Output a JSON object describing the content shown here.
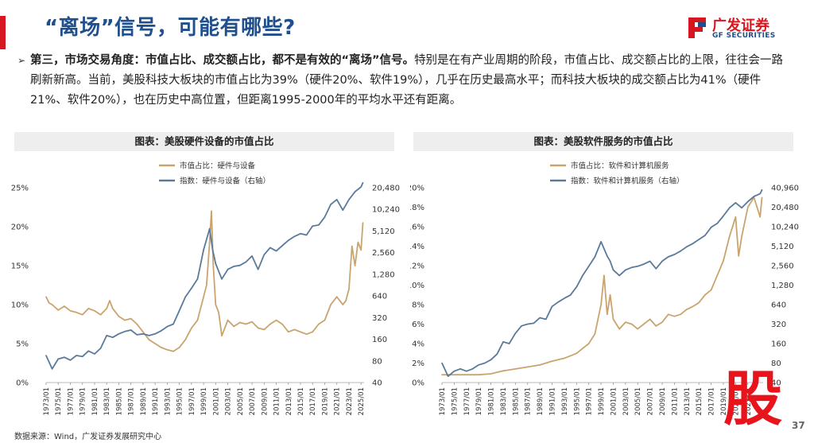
{
  "header": {
    "title": "“离场”信号，可能有哪些?",
    "logo_cn": "广发证券",
    "logo_en": "GF SECURITIES"
  },
  "paragraph": {
    "lead": "第三，市场交易角度：市值占比、成交额占比，都不是有效的“离场”信号。",
    "body": "特别是在有产业周期的阶段，市值占比、成交额占比的上限，往往会一路刷新新高。当前，美股科技大板块的市值占比为39%（硬件20%、软件19%），几乎在历史最高水平；而科技大板块的成交额占比为41%（硬件21%、软件20%），也在历史中高位置，但距离1995-2000年的平均水平还有距离。"
  },
  "footer": {
    "source": "数据来源：Wind，广发证券发展研究中心",
    "page": "37",
    "watermark": "股"
  },
  "colors": {
    "share": "#c9a46e",
    "index": "#5a7a9a",
    "title": "#1f4f8c",
    "brand_red": "#d6171f"
  },
  "chart_data": [
    {
      "type": "line",
      "title": "图表：美股硬件设备的市值占比",
      "legend": [
        "市值占比：硬件与设备",
        "指数：硬件与设备（右轴）"
      ],
      "y_left_ticks": [
        "25%",
        "20%",
        "15%",
        "10%",
        "5%",
        "0%"
      ],
      "y_left_range": [
        0,
        25
      ],
      "y_right_ticks": [
        "20,480",
        "10,240",
        "5,120",
        "2,560",
        "1,280",
        "640",
        "320",
        "160",
        "80",
        "40"
      ],
      "y_right_range_log2": [
        40,
        20480
      ],
      "x_ticks": [
        "1973/01",
        "1975/01",
        "1977/01",
        "1979/01",
        "1981/01",
        "1983/01",
        "1985/01",
        "1987/01",
        "1989/01",
        "1991/01",
        "1993/01",
        "1995/01",
        "1997/01",
        "1999/01",
        "2001/01",
        "2003/01",
        "2005/01",
        "2007/01",
        "2009/01",
        "2011/01",
        "2013/01",
        "2015/01",
        "2017/01",
        "2019/01",
        "2021/01",
        "2023/01",
        "2025/01"
      ],
      "x_range": [
        1973,
        2025.5
      ],
      "series": [
        {
          "name": "市值占比：硬件与设备",
          "axis": "left",
          "x": [
            1973,
            1973.5,
            1974,
            1975,
            1976,
            1977,
            1978,
            1979,
            1980,
            1981,
            1982,
            1983,
            1983.5,
            1984,
            1985,
            1986,
            1987,
            1988,
            1989,
            1990,
            1991,
            1992,
            1993,
            1994,
            1995,
            1996,
            1997,
            1998,
            1999,
            1999.5,
            2000,
            2000.3,
            2000.6,
            2001,
            2001.5,
            2002,
            2002.5,
            2003,
            2004,
            2005,
            2006,
            2007,
            2008,
            2009,
            2010,
            2011,
            2012,
            2013,
            2014,
            2015,
            2016,
            2017,
            2018,
            2019,
            2020,
            2021,
            2022,
            2022.5,
            2023,
            2023.5,
            2024,
            2024.5,
            2025,
            2025.3
          ],
          "values": [
            11,
            10.2,
            10,
            9.3,
            9.8,
            9.2,
            9,
            8.7,
            9.5,
            9.2,
            8.7,
            9.5,
            10.5,
            9.5,
            8.5,
            8,
            8.2,
            7.5,
            6.5,
            5.5,
            5,
            4.5,
            4.2,
            4,
            4.5,
            5.5,
            7,
            8,
            11,
            12.5,
            18,
            22,
            15,
            10,
            9,
            6,
            7,
            8,
            7.2,
            7.7,
            7.5,
            7.8,
            7,
            6.8,
            7.5,
            8,
            7.5,
            6.5,
            6.8,
            6.5,
            6.2,
            6.5,
            7.5,
            8,
            10,
            11,
            10,
            10.5,
            12,
            17.5,
            15,
            18,
            17,
            20.5
          ]
        },
        {
          "name": "指数：硬件与设备（右轴）",
          "axis": "right",
          "x": [
            1973,
            1974,
            1975,
            1976,
            1977,
            1978,
            1979,
            1980,
            1981,
            1982,
            1983,
            1984,
            1985,
            1986,
            1987,
            1988,
            1989,
            1990,
            1991,
            1992,
            1993,
            1994,
            1995,
            1996,
            1997,
            1998,
            1999,
            2000,
            2000.5,
            2001,
            2002,
            2003,
            2004,
            2005,
            2006,
            2007,
            2008,
            2009,
            2010,
            2011,
            2012,
            2013,
            2014,
            2015,
            2016,
            2017,
            2018,
            2019,
            2020,
            2021,
            2022,
            2023,
            2024,
            2025,
            2025.3
          ],
          "values": [
            95,
            62,
            85,
            90,
            82,
            95,
            92,
            110,
            100,
            120,
            180,
            170,
            190,
            205,
            215,
            185,
            190,
            180,
            190,
            210,
            240,
            260,
            400,
            620,
            820,
            1100,
            2800,
            5500,
            2800,
            1800,
            1100,
            1500,
            1650,
            1700,
            1900,
            2300,
            1500,
            2400,
            3000,
            2700,
            3200,
            3800,
            4300,
            4700,
            4500,
            6000,
            6200,
            8000,
            12000,
            14000,
            10000,
            14000,
            18000,
            21000,
            24000
          ]
        }
      ]
    },
    {
      "type": "line",
      "title": "图表：美股软件服务的市值占比",
      "legend": [
        "市值占比：软件和计算机服务",
        "指数：软件和计算机服务（右轴）"
      ],
      "y_left_ticks": [
        "20%",
        "18%",
        "16%",
        "14%",
        "12%",
        "10%",
        "8%",
        "6%",
        "4%",
        "2%",
        "0%"
      ],
      "y_left_range": [
        0,
        20
      ],
      "y_right_ticks": [
        "40,960",
        "20,480",
        "10,240",
        "5,120",
        "2,560",
        "1,280",
        "640",
        "320",
        "160",
        "80",
        "40"
      ],
      "y_right_range_log2": [
        40,
        40960
      ],
      "x_ticks": [
        "1973/01",
        "1975/01",
        "1977/01",
        "1979/01",
        "1981/01",
        "1983/01",
        "1985/01",
        "1987/01",
        "1989/01",
        "1991/01",
        "1993/01",
        "1995/01",
        "1997/01",
        "1999/01",
        "2001/01",
        "2003/01",
        "2005/01",
        "2007/01",
        "2009/01",
        "2011/01",
        "2013/01",
        "2015/01",
        "2017/01",
        "2019/01",
        "2021/01",
        "2023/01"
      ],
      "x_range": [
        1973,
        2025.5
      ],
      "series": [
        {
          "name": "市值占比：软件和计算机服务",
          "axis": "left",
          "x": [
            1973,
            1975,
            1977,
            1979,
            1981,
            1983,
            1985,
            1987,
            1989,
            1991,
            1993,
            1995,
            1996,
            1997,
            1998,
            1999,
            1999.5,
            2000,
            2000.5,
            2001,
            2002,
            2003,
            2004,
            2005,
            2006,
            2007,
            2008,
            2009,
            2010,
            2011,
            2012,
            2013,
            2014,
            2015,
            2016,
            2017,
            2018,
            2019,
            2020,
            2021,
            2021.5,
            2022,
            2023,
            2024,
            2025,
            2025.3
          ],
          "values": [
            0.8,
            0.8,
            0.8,
            0.8,
            0.9,
            1.2,
            1.4,
            1.6,
            1.8,
            2.2,
            2.5,
            3,
            3.5,
            4,
            5,
            8,
            11,
            7,
            9,
            6.5,
            5.5,
            6.2,
            6,
            5.5,
            6,
            6.5,
            5.8,
            6.2,
            7,
            6.8,
            7,
            7.5,
            7.8,
            8.2,
            9,
            9.5,
            11,
            12.5,
            15,
            17,
            13,
            15,
            18,
            19,
            17,
            19
          ]
        },
        {
          "name": "指数：软件和计算机服务（右轴）",
          "axis": "right",
          "x": [
            1973,
            1974,
            1975,
            1976,
            1977,
            1978,
            1979,
            1980,
            1981,
            1982,
            1983,
            1984,
            1985,
            1986,
            1987,
            1988,
            1989,
            1990,
            1991,
            1992,
            1993,
            1994,
            1995,
            1996,
            1997,
            1998,
            1999,
            2000,
            2000.5,
            2001,
            2002,
            2003,
            2004,
            2005,
            2006,
            2007,
            2008,
            2009,
            2010,
            2011,
            2012,
            2013,
            2014,
            2015,
            2016,
            2017,
            2018,
            2019,
            2020,
            2021,
            2022,
            2023,
            2024,
            2025,
            2025.3
          ],
          "values": [
            80,
            50,
            60,
            65,
            60,
            65,
            75,
            80,
            90,
            110,
            170,
            160,
            230,
            300,
            320,
            330,
            400,
            380,
            600,
            700,
            800,
            900,
            1200,
            1800,
            2500,
            3500,
            6000,
            3600,
            3000,
            2200,
            1800,
            2200,
            2400,
            2500,
            2700,
            3000,
            2300,
            3000,
            3500,
            3800,
            4300,
            5000,
            5600,
            6500,
            7500,
            10000,
            11500,
            15000,
            20000,
            24000,
            20000,
            25000,
            30000,
            33000,
            38000
          ]
        }
      ]
    }
  ]
}
